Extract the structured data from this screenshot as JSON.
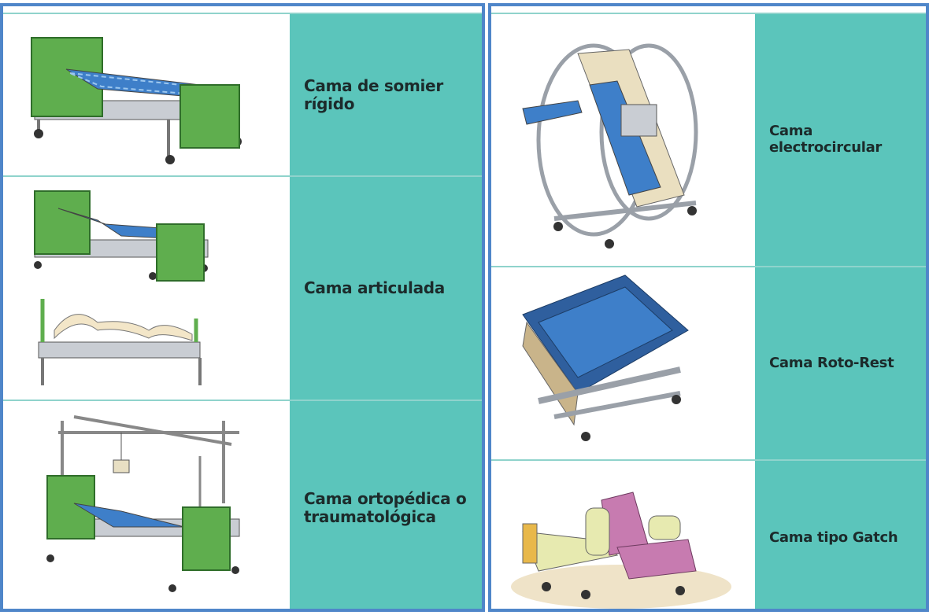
{
  "left_panel": {
    "rows": [
      {
        "label": "Cama de somier rígido"
      },
      {
        "label": "Cama articulada"
      },
      {
        "label": "Cama ortopédica o traumatológica"
      }
    ]
  },
  "right_panel": {
    "rows": [
      {
        "label": "Cama electrocircular"
      },
      {
        "label": "Cama Roto-Rest"
      },
      {
        "label": "Cama tipo Gatch"
      }
    ]
  }
}
